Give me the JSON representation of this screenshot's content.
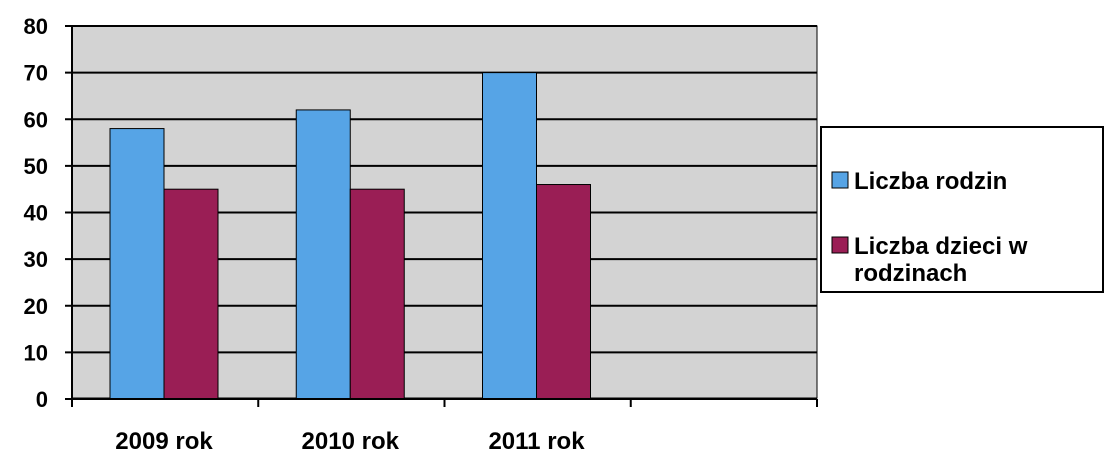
{
  "chart_data": {
    "type": "bar",
    "categories": [
      "2009 rok",
      "2010 rok",
      "2011 rok",
      ""
    ],
    "series": [
      {
        "name": "Liczba rodzin",
        "values": [
          58,
          62,
          70,
          null
        ]
      },
      {
        "name": "Liczba dzieci w rodzinach",
        "values": [
          45,
          45,
          46,
          null
        ]
      }
    ],
    "ylim": [
      0,
      80
    ],
    "yticks": [
      "0",
      "10",
      "20",
      "30",
      "40",
      "50",
      "60",
      "70",
      "80"
    ],
    "grid": true,
    "legend_position": "right",
    "colors": {
      "series_0": "#56a4e6",
      "series_1": "#9a1e55",
      "plot_background": "#d3d3d3"
    },
    "xlabel": "",
    "ylabel": "",
    "title": ""
  },
  "legend": {
    "items": [
      {
        "line1": "Liczba rodzin",
        "line2": ""
      },
      {
        "line1": "Liczba dzieci w",
        "line2": "rodzinach"
      }
    ]
  }
}
